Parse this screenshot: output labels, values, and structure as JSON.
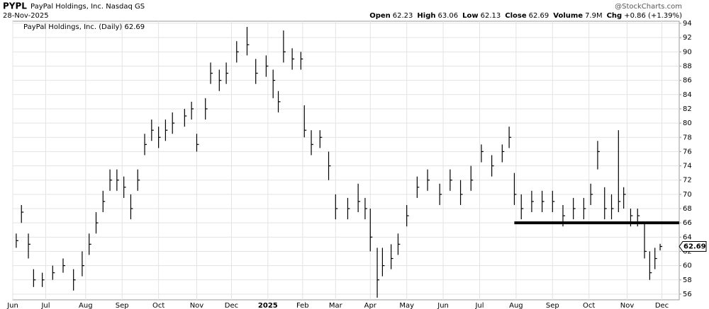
{
  "chart_data": {
    "type": "ohlc",
    "symbol": "PYPL",
    "company": "PayPal Holdings, Inc. Nasdaq GS",
    "date": "28-Nov-2025",
    "watermark": "@StockCharts.com",
    "quote": [
      {
        "label": "Open",
        "value": "62.23"
      },
      {
        "label": "High",
        "value": "63.06"
      },
      {
        "label": "Low",
        "value": "62.13"
      },
      {
        "label": "Close",
        "value": "62.69"
      },
      {
        "label": "Volume",
        "value": "7.9M"
      },
      {
        "label": "Chg",
        "value": "+0.86 (+1.39%)"
      }
    ],
    "legend": "PayPal Holdings, Inc. (Daily) 62.69",
    "last_label": "62.69",
    "color": "#000000",
    "grid": true,
    "x": [
      2,
      5,
      9,
      12,
      17,
      23,
      29,
      35,
      40,
      44,
      48,
      52,
      56,
      60,
      64,
      68,
      72,
      76,
      80,
      84,
      88,
      92,
      99,
      103,
      106,
      111,
      114,
      119,
      123,
      129,
      135,
      140,
      146,
      150,
      153,
      156,
      161,
      166,
      168,
      172,
      177,
      182,
      186,
      193,
      199,
      203,
      206,
      210,
      213,
      218,
      222,
      227,
      233,
      239,
      246,
      252,
      258,
      264,
      270,
      276,
      282,
      286,
      289,
      293,
      299,
      305,
      311,
      317,
      323,
      329,
      333,
      337,
      341,
      345,
      349,
      352,
      356,
      360,
      364,
      367,
      370,
      373
    ],
    "high": [
      64.5,
      68.5,
      64.5,
      59.5,
      59,
      60,
      61,
      59.5,
      62,
      64.5,
      67.5,
      70.5,
      73.5,
      73.5,
      72.5,
      70,
      73.5,
      78.5,
      80.5,
      79.5,
      80.5,
      81.5,
      82,
      83,
      78.5,
      83.5,
      88.5,
      87.5,
      88.5,
      91.5,
      93.5,
      89,
      89.5,
      87.5,
      84.5,
      93,
      90.5,
      90,
      82.5,
      79,
      79,
      76,
      70,
      69.5,
      71.5,
      69.5,
      68,
      62.5,
      62.5,
      63,
      64.5,
      68.5,
      72.5,
      73.5,
      71.5,
      73.5,
      72,
      74,
      77,
      75.5,
      77,
      79.5,
      73,
      70,
      70.5,
      70.5,
      70.5,
      68.5,
      69.5,
      69.5,
      71.5,
      77.5,
      71,
      70,
      79,
      71,
      68,
      68,
      66,
      62,
      62.5,
      63.06
    ],
    "low": [
      62.5,
      66,
      61,
      57,
      57,
      58,
      59,
      56.5,
      58.5,
      61.5,
      64.5,
      67.5,
      70.5,
      70.5,
      69.5,
      66.5,
      70.5,
      75.5,
      77.5,
      76.5,
      77.5,
      78.5,
      79.5,
      80.5,
      76,
      80.5,
      85.5,
      84.5,
      85.5,
      88.5,
      89.5,
      85.5,
      86.5,
      83.5,
      81.5,
      88.5,
      87.5,
      87.5,
      78,
      75.5,
      76.5,
      72,
      66.5,
      66.5,
      67.5,
      66.5,
      62,
      55.5,
      58.5,
      59.5,
      61.5,
      65.5,
      69.5,
      70.5,
      68.5,
      70.5,
      68.5,
      70.5,
      74.5,
      72.5,
      74.5,
      76.5,
      68.5,
      66.5,
      67.5,
      67.5,
      67.5,
      65.5,
      66.5,
      66.5,
      68.5,
      73.5,
      66.5,
      66.5,
      67.5,
      68,
      65.5,
      65.5,
      61,
      58,
      59.5,
      62.13
    ],
    "close": [
      63.5,
      67.5,
      63,
      58,
      58,
      59,
      60,
      58,
      60,
      63,
      66,
      69,
      72,
      72,
      71,
      68,
      72,
      77,
      79,
      78,
      79,
      80,
      81,
      82,
      77,
      82,
      87,
      86,
      87,
      90,
      91,
      87,
      88,
      86,
      83,
      90,
      89,
      89,
      79,
      77,
      78,
      74,
      68,
      68,
      69,
      68,
      64,
      58,
      60,
      61,
      63,
      67,
      71,
      72,
      70,
      72,
      70,
      72,
      76,
      74,
      76,
      78,
      70,
      68,
      69,
      69,
      69,
      67,
      68,
      68,
      70,
      76,
      68,
      68,
      69,
      70,
      67,
      67,
      62,
      59,
      61,
      62.69
    ],
    "support_line": {
      "y": 66,
      "x_start": 289,
      "x_end": 384
    },
    "xlim": [
      0,
      384
    ],
    "xticks": [
      {
        "value": 0,
        "label": "Jun"
      },
      {
        "value": 19,
        "label": "Jul"
      },
      {
        "value": 42,
        "label": "Aug"
      },
      {
        "value": 63,
        "label": "Sep"
      },
      {
        "value": 84,
        "label": "Oct"
      },
      {
        "value": 106,
        "label": "Nov"
      },
      {
        "value": 126,
        "label": "Dec"
      },
      {
        "value": 147,
        "label": "2025"
      },
      {
        "value": 167,
        "label": "Feb"
      },
      {
        "value": 186,
        "label": "Mar"
      },
      {
        "value": 206,
        "label": "Apr"
      },
      {
        "value": 227,
        "label": "May"
      },
      {
        "value": 248,
        "label": "Jun"
      },
      {
        "value": 269,
        "label": "Jul"
      },
      {
        "value": 290,
        "label": "Aug"
      },
      {
        "value": 311,
        "label": "Sep"
      },
      {
        "value": 332,
        "label": "Oct"
      },
      {
        "value": 354,
        "label": "Nov"
      },
      {
        "value": 374,
        "label": "Dec"
      }
    ],
    "ylim": [
      55.2,
      94.3
    ],
    "yticks": [
      56,
      58,
      60,
      62,
      64,
      66,
      68,
      70,
      72,
      74,
      76,
      78,
      80,
      82,
      84,
      86,
      88,
      90,
      92,
      94
    ]
  }
}
